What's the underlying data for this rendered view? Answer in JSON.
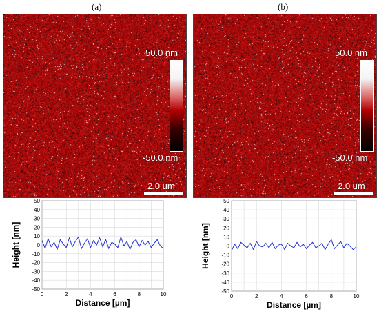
{
  "panels": [
    {
      "label": "(a)",
      "colorbar_max": "50.0 nm",
      "colorbar_min": "-50.0 nm",
      "scale_bar": "2.0 um"
    },
    {
      "label": "(b)",
      "colorbar_max": "50.0 nm",
      "colorbar_min": "-50.0 nm",
      "scale_bar": "2.0 um"
    }
  ],
  "colors": {
    "afm_base": "#7a0a0a",
    "profile_line": "#1f2fd0",
    "grid": "#d9d9d9"
  },
  "chart_data": [
    {
      "type": "line",
      "xlabel": "Distance [µm]",
      "ylabel": "Height [nm]",
      "xlim": [
        0,
        10
      ],
      "ylim": [
        -50,
        50
      ],
      "xticks": [
        "0",
        "2",
        "4",
        "6",
        "8",
        "10"
      ],
      "yticks": [
        "50",
        "40",
        "30",
        "20",
        "10",
        "0",
        "-10",
        "-20",
        "-30",
        "-40",
        "-50"
      ],
      "grid": true,
      "series": [
        {
          "x": [
            0,
            0.25,
            0.5,
            0.75,
            1,
            1.25,
            1.5,
            1.75,
            2,
            2.25,
            2.5,
            2.75,
            3,
            3.25,
            3.5,
            3.75,
            4,
            4.25,
            4.5,
            4.75,
            5,
            5.25,
            5.5,
            5.75,
            6,
            6.25,
            6.5,
            6.75,
            7,
            7.25,
            7.5,
            7.75,
            8,
            8.25,
            8.5,
            8.75,
            9,
            9.25,
            9.5,
            9.75,
            10
          ],
          "y": [
            5,
            -4,
            7,
            -2,
            3,
            -5,
            6,
            1,
            -3,
            8,
            -2,
            4,
            9,
            -4,
            2,
            7,
            -3,
            5,
            0,
            8,
            -2,
            6,
            -4,
            3,
            1,
            -3,
            9,
            -1,
            4,
            -5,
            3,
            6,
            -2,
            5,
            0,
            4,
            -3,
            2,
            6,
            -1,
            -4
          ]
        }
      ]
    },
    {
      "type": "line",
      "xlabel": "Distance [µm]",
      "ylabel": "Height [nm]",
      "xlim": [
        0,
        10
      ],
      "ylim": [
        -50,
        50
      ],
      "xticks": [
        "0",
        "2",
        "4",
        "6",
        "8",
        "10"
      ],
      "yticks": [
        "50",
        "40",
        "30",
        "20",
        "10",
        "0",
        "-10",
        "-20",
        "-30",
        "-40",
        "-50"
      ],
      "grid": true,
      "series": [
        {
          "x": [
            0,
            0.25,
            0.5,
            0.75,
            1,
            1.25,
            1.5,
            1.75,
            2,
            2.25,
            2.5,
            2.75,
            3,
            3.25,
            3.5,
            3.75,
            4,
            4.25,
            4.5,
            4.75,
            5,
            5.25,
            5.5,
            5.75,
            6,
            6.25,
            6.5,
            6.75,
            7,
            7.25,
            7.5,
            7.75,
            8,
            8.25,
            8.5,
            8.75,
            9,
            9.25,
            9.5,
            9.75,
            10
          ],
          "y": [
            -5,
            2,
            -3,
            4,
            1,
            -2,
            3,
            -4,
            5,
            0,
            -1,
            3,
            -2,
            4,
            -3,
            1,
            2,
            -4,
            3,
            0,
            -2,
            4,
            -1,
            2,
            -3,
            1,
            4,
            -2,
            0,
            3,
            -4,
            2,
            7,
            -3,
            1,
            5,
            -2,
            3,
            0,
            -4,
            -1
          ]
        }
      ]
    }
  ]
}
